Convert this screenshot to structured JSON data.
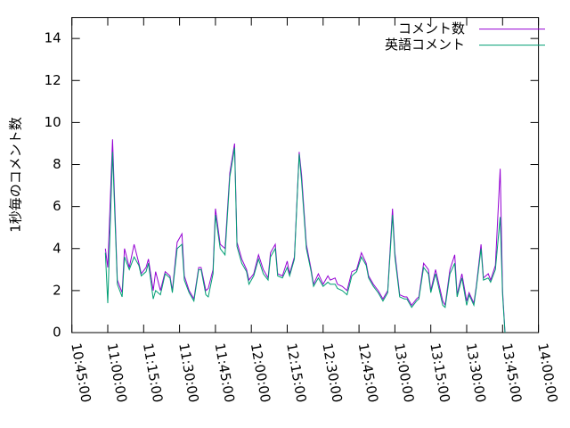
{
  "chart_data": {
    "type": "line",
    "ylabel": "1秒毎のコメント数",
    "x": [
      "10:59:00",
      "11:00:00",
      "11:02:00",
      "11:04:00",
      "11:06:00",
      "11:07:00",
      "11:09:00",
      "11:11:00",
      "11:13:00",
      "11:14:00",
      "11:16:00",
      "11:17:00",
      "11:19:00",
      "11:20:00",
      "11:22:00",
      "11:24:00",
      "11:26:00",
      "11:27:00",
      "11:29:00",
      "11:31:00",
      "11:32:00",
      "11:34:00",
      "11:36:00",
      "11:38:00",
      "11:39:00",
      "11:41:00",
      "11:42:00",
      "11:44:00",
      "11:45:00",
      "11:47:00",
      "11:49:00",
      "11:51:00",
      "11:53:00",
      "11:54:00",
      "11:56:00",
      "11:58:00",
      "11:59:00",
      "12:01:00",
      "12:03:00",
      "12:05:00",
      "12:07:00",
      "12:08:00",
      "12:10:00",
      "12:11:00",
      "12:13:00",
      "12:15:00",
      "12:16:00",
      "12:18:00",
      "12:20:00",
      "12:21:00",
      "12:23:00",
      "12:25:00",
      "12:26:00",
      "12:28:00",
      "12:30:00",
      "12:32:00",
      "12:33:00",
      "12:35:00",
      "12:36:00",
      "12:38:00",
      "12:40:00",
      "12:42:00",
      "12:44:00",
      "12:46:00",
      "12:48:00",
      "12:49:00",
      "12:51:00",
      "12:53:00",
      "12:55:00",
      "12:57:00",
      "12:59:00",
      "13:00:00",
      "13:02:00",
      "13:04:00",
      "13:05:00",
      "13:07:00",
      "13:09:00",
      "13:10:00",
      "13:12:00",
      "13:14:00",
      "13:15:00",
      "13:17:00",
      "13:18:00",
      "13:20:00",
      "13:21:00",
      "13:23:00",
      "13:25:00",
      "13:26:00",
      "13:28:00",
      "13:30:00",
      "13:31:00",
      "13:33:00",
      "13:34:00",
      "13:36:00",
      "13:37:00",
      "13:39:00",
      "13:40:00",
      "13:42:00",
      "13:44:00",
      "13:45:00",
      "13:46:00"
    ],
    "series": [
      {
        "name": "コメント数",
        "color": "#9400d3",
        "values": [
          4.0,
          3.1,
          9.2,
          2.5,
          1.9,
          4.0,
          3.1,
          4.2,
          3.3,
          2.8,
          3.1,
          3.5,
          2.0,
          2.9,
          2.0,
          2.9,
          2.7,
          2.0,
          4.3,
          4.7,
          2.7,
          2.0,
          1.6,
          3.1,
          3.1,
          2.0,
          2.1,
          3.0,
          5.9,
          4.2,
          4.0,
          7.6,
          9.0,
          4.3,
          3.5,
          3.0,
          2.5,
          2.8,
          3.7,
          3.0,
          2.6,
          3.8,
          4.2,
          2.8,
          2.7,
          3.4,
          2.8,
          3.6,
          8.6,
          7.5,
          4.2,
          3.0,
          2.3,
          2.8,
          2.3,
          2.7,
          2.5,
          2.6,
          2.3,
          2.2,
          2.0,
          2.9,
          3.0,
          3.8,
          3.3,
          2.7,
          2.3,
          2.0,
          1.6,
          2.0,
          5.9,
          3.8,
          1.8,
          1.7,
          1.7,
          1.3,
          1.6,
          1.7,
          3.3,
          3.0,
          2.0,
          3.0,
          2.5,
          1.5,
          1.3,
          3.0,
          3.7,
          1.8,
          2.8,
          1.5,
          1.9,
          1.4,
          2.2,
          4.2,
          2.6,
          2.8,
          2.5,
          3.2,
          7.8,
          2.0,
          0.0
        ]
      },
      {
        "name": "英語コメント",
        "color": "#009e73",
        "values": [
          3.8,
          1.4,
          8.6,
          2.3,
          1.7,
          3.6,
          3.0,
          3.6,
          3.2,
          2.7,
          2.9,
          3.3,
          1.6,
          2.0,
          1.8,
          2.8,
          2.6,
          1.9,
          4.0,
          4.2,
          2.5,
          1.9,
          1.5,
          3.0,
          3.0,
          1.8,
          1.7,
          2.8,
          5.6,
          4.0,
          3.7,
          7.4,
          8.8,
          4.1,
          3.3,
          2.9,
          2.3,
          2.7,
          3.5,
          2.8,
          2.5,
          3.6,
          4.0,
          2.7,
          2.6,
          3.1,
          2.7,
          3.5,
          8.5,
          7.2,
          4.0,
          2.9,
          2.2,
          2.6,
          2.2,
          2.4,
          2.3,
          2.3,
          2.1,
          2.0,
          1.8,
          2.7,
          2.9,
          3.6,
          3.2,
          2.6,
          2.2,
          1.9,
          1.5,
          1.9,
          5.6,
          3.6,
          1.7,
          1.6,
          1.6,
          1.2,
          1.5,
          1.6,
          3.1,
          2.8,
          1.9,
          2.8,
          2.3,
          1.3,
          1.2,
          2.8,
          3.3,
          1.7,
          2.6,
          1.3,
          1.8,
          1.3,
          2.1,
          4.0,
          2.5,
          2.6,
          2.4,
          3.0,
          5.5,
          1.8,
          0.0
        ]
      }
    ],
    "xlim": [
      "10:45:00",
      "14:00:00"
    ],
    "xticks": [
      "10:45:00",
      "11:00:00",
      "11:15:00",
      "11:30:00",
      "11:45:00",
      "12:00:00",
      "12:15:00",
      "12:30:00",
      "12:45:00",
      "13:00:00",
      "13:15:00",
      "13:30:00",
      "13:45:00",
      "14:00:00"
    ],
    "ylim": [
      0,
      15
    ],
    "yticks": [
      0,
      2,
      4,
      6,
      8,
      10,
      12,
      14
    ],
    "legend": "upper right"
  }
}
